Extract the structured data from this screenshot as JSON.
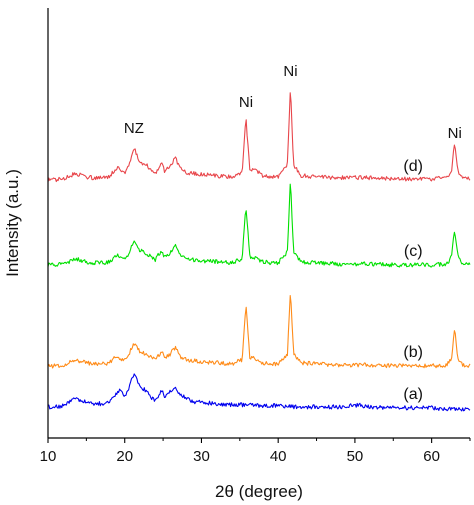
{
  "chart_data": {
    "type": "line",
    "xlabel": "2θ (degree)",
    "ylabel": "Intensity (a.u.)",
    "xlim": [
      10,
      65
    ],
    "xticks": [
      "10",
      "20",
      "30",
      "40",
      "50",
      "60"
    ],
    "grid": false,
    "legend": "none",
    "annotations": [
      {
        "text": "NZ",
        "x": 21.2
      },
      {
        "text": "Ni",
        "x": 35.8
      },
      {
        "text": "Ni",
        "x": 41.6
      },
      {
        "text": "Ni",
        "x": 63.0
      }
    ],
    "series": [
      {
        "name": "(a)",
        "color": "#0000ee",
        "x": [
          10,
          11,
          12,
          13,
          13.5,
          14,
          15,
          16,
          17,
          18,
          19,
          19.5,
          20,
          20.5,
          21,
          21.3,
          21.8,
          22.5,
          23,
          23.5,
          24,
          24.8,
          25.2,
          25.8,
          26.6,
          27.2,
          28,
          29,
          30,
          32,
          34,
          36,
          38,
          40,
          42,
          44,
          46,
          48,
          50.6,
          51,
          52,
          54,
          56,
          58,
          60,
          62,
          64,
          65
        ],
        "y": [
          3,
          3,
          4,
          9,
          12,
          10,
          7,
          6,
          6,
          7,
          16,
          19,
          14,
          20,
          31,
          34,
          24,
          20,
          17,
          12,
          9,
          19,
          13,
          18,
          22,
          15,
          11,
          8,
          7,
          6,
          5,
          5,
          4,
          4,
          3,
          3,
          3,
          3,
          5,
          3,
          3,
          2,
          2,
          2,
          2,
          1,
          1,
          1
        ]
      },
      {
        "name": "(b)",
        "color": "#ff8c1a",
        "x": [
          10,
          11,
          12,
          13,
          13.5,
          14,
          15,
          16,
          17,
          18,
          19,
          19.5,
          20,
          20.5,
          21,
          21.3,
          21.8,
          22.5,
          23,
          23.5,
          24,
          24.8,
          25.2,
          25.8,
          26.6,
          27.2,
          28,
          30,
          32,
          34,
          35.3,
          35.8,
          36.3,
          37,
          38,
          39,
          40,
          41.2,
          41.6,
          42,
          43,
          45,
          48,
          50,
          52,
          55,
          58,
          60,
          62,
          62.6,
          63.0,
          63.4,
          64,
          65
        ],
        "y": [
          2,
          2,
          3,
          6,
          8,
          7,
          5,
          4,
          4,
          5,
          12,
          9,
          8,
          12,
          21,
          24,
          17,
          14,
          12,
          10,
          7,
          16,
          9,
          12,
          20,
          11,
          8,
          6,
          5,
          4,
          8,
          62,
          10,
          9,
          5,
          4,
          4,
          12,
          76,
          14,
          5,
          4,
          3,
          3,
          3,
          2,
          2,
          2,
          3,
          10,
          38,
          10,
          3,
          2
        ]
      },
      {
        "name": "(c)",
        "color": "#00e000",
        "x": [
          10,
          11,
          12,
          13,
          13.5,
          14,
          15,
          16,
          17,
          18,
          19,
          19.5,
          20,
          20.5,
          21,
          21.3,
          21.8,
          22.5,
          23,
          23.5,
          24,
          24.8,
          25.2,
          25.8,
          26.6,
          27.2,
          28,
          30,
          32,
          34,
          35.3,
          35.8,
          36.3,
          37,
          38,
          39,
          40,
          41.2,
          41.6,
          42,
          43,
          45,
          48,
          50,
          52,
          55,
          58,
          60,
          62,
          62.6,
          63.0,
          63.4,
          64,
          65
        ],
        "y": [
          2,
          2,
          3,
          6,
          8,
          7,
          5,
          4,
          4,
          5,
          11,
          9,
          8,
          12,
          22,
          25,
          17,
          14,
          12,
          10,
          7,
          16,
          9,
          12,
          20,
          11,
          8,
          6,
          5,
          4,
          8,
          58,
          10,
          9,
          5,
          4,
          4,
          14,
          83,
          14,
          5,
          4,
          3,
          3,
          3,
          2,
          2,
          2,
          3,
          10,
          36,
          10,
          3,
          2
        ]
      },
      {
        "name": "(d)",
        "color": "#e8464b",
        "x": [
          10,
          11,
          12,
          13,
          13.5,
          14,
          15,
          16,
          17,
          18,
          19,
          19.5,
          20,
          20.5,
          21,
          21.3,
          21.8,
          22.5,
          23,
          23.5,
          24,
          24.8,
          25.2,
          25.8,
          26.6,
          27.2,
          28,
          30,
          32,
          34,
          35.3,
          35.8,
          36.3,
          37,
          38,
          39,
          40,
          41.2,
          41.6,
          42,
          43,
          45,
          48,
          50,
          52,
          55,
          58,
          60,
          62,
          62.6,
          63.0,
          63.4,
          64,
          65
        ],
        "y": [
          2,
          2,
          3,
          6,
          8,
          7,
          5,
          4,
          4,
          5,
          14,
          10,
          9,
          14,
          27,
          31,
          21,
          17,
          15,
          12,
          8,
          18,
          10,
          14,
          23,
          13,
          9,
          7,
          6,
          5,
          10,
          60,
          12,
          11,
          6,
          5,
          5,
          16,
          92,
          16,
          6,
          5,
          4,
          4,
          4,
          3,
          3,
          3,
          4,
          11,
          38,
          11,
          4,
          3
        ]
      }
    ]
  }
}
